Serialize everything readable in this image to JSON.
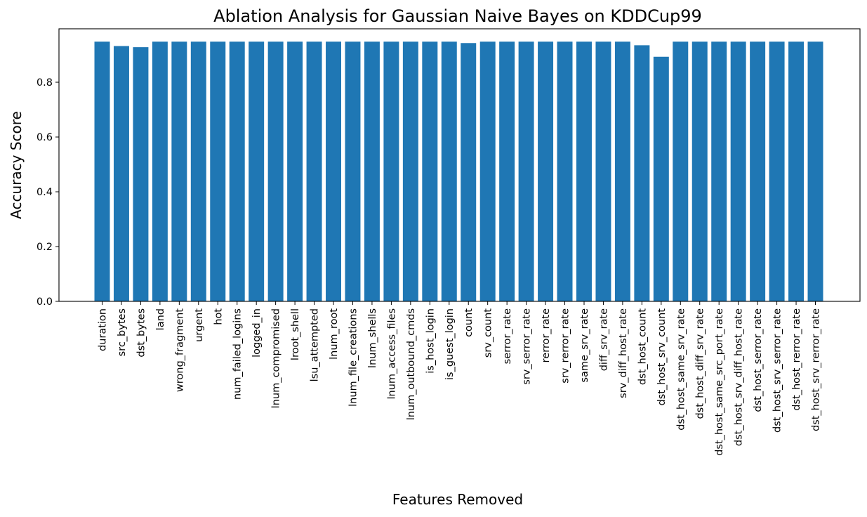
{
  "chart_data": {
    "type": "bar",
    "title": "Ablation Analysis for Gaussian Naive Bayes on KDDCup99",
    "xlabel": "Features Removed",
    "ylabel": "Accuracy Score",
    "ylim": [
      0,
      0.995
    ],
    "yticks": [
      {
        "value": 0.0,
        "label": "0.0"
      },
      {
        "value": 0.2,
        "label": "0.2"
      },
      {
        "value": 0.4,
        "label": "0.4"
      },
      {
        "value": 0.6,
        "label": "0.6"
      },
      {
        "value": 0.8,
        "label": "0.8"
      }
    ],
    "grid": false,
    "legend": "none",
    "bar_color": "#1f77b4",
    "categories": [
      "duration",
      "src_bytes",
      "dst_bytes",
      "land",
      "wrong_fragment",
      "urgent",
      "hot",
      "num_failed_logins",
      "logged_in",
      "lnum_compromised",
      "lroot_shell",
      "lsu_attempted",
      "lnum_root",
      "lnum_file_creations",
      "lnum_shells",
      "lnum_access_files",
      "lnum_outbound_cmds",
      "is_host_login",
      "is_guest_login",
      "count",
      "srv_count",
      "serror_rate",
      "srv_serror_rate",
      "rerror_rate",
      "srv_rerror_rate",
      "same_srv_rate",
      "diff_srv_rate",
      "srv_diff_host_rate",
      "dst_host_count",
      "dst_host_srv_count",
      "dst_host_same_srv_rate",
      "dst_host_diff_srv_rate",
      "dst_host_same_src_port_rate",
      "dst_host_srv_diff_host_rate",
      "dst_host_serror_rate",
      "dst_host_srv_serror_rate",
      "dst_host_rerror_rate",
      "dst_host_srv_rerror_rate"
    ],
    "values": [
      0.948,
      0.932,
      0.928,
      0.948,
      0.948,
      0.948,
      0.948,
      0.948,
      0.948,
      0.948,
      0.948,
      0.948,
      0.948,
      0.948,
      0.948,
      0.948,
      0.948,
      0.948,
      0.948,
      0.943,
      0.948,
      0.948,
      0.948,
      0.948,
      0.948,
      0.948,
      0.948,
      0.948,
      0.935,
      0.893,
      0.948,
      0.948,
      0.948,
      0.948,
      0.948,
      0.948,
      0.948,
      0.948
    ]
  }
}
